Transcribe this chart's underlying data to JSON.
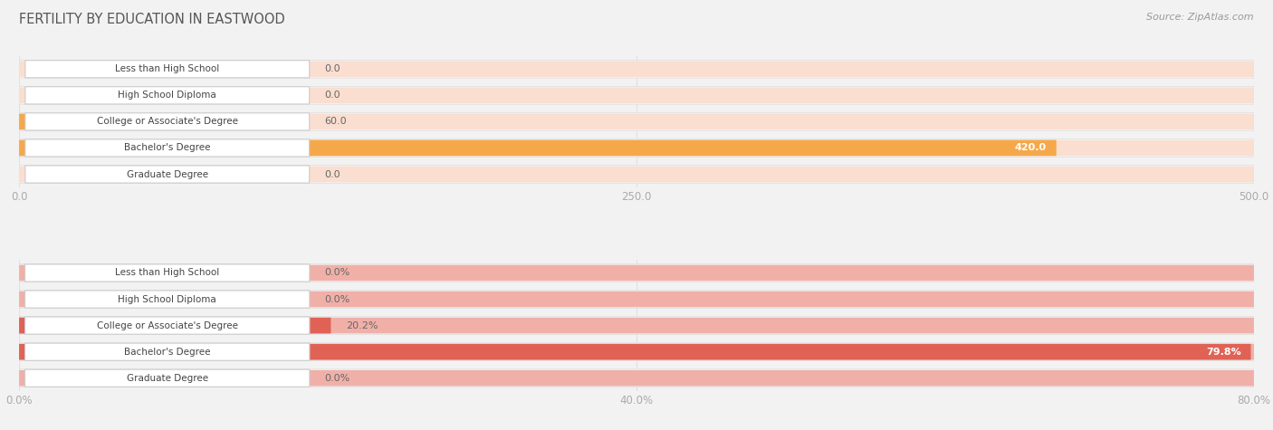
{
  "title": "FERTILITY BY EDUCATION IN EASTWOOD",
  "source": "Source: ZipAtlas.com",
  "chart1": {
    "categories": [
      "Less than High School",
      "High School Diploma",
      "College or Associate's Degree",
      "Bachelor's Degree",
      "Graduate Degree"
    ],
    "values": [
      0.0,
      0.0,
      60.0,
      420.0,
      0.0
    ],
    "xlim": [
      0,
      500
    ],
    "xticks": [
      0.0,
      250.0,
      500.0
    ],
    "bar_color_main": "#F5A84A",
    "bar_color_light": "#FADED0",
    "label_values": [
      "0.0",
      "0.0",
      "60.0",
      "420.0",
      "0.0"
    ],
    "max_idx": 3
  },
  "chart2": {
    "categories": [
      "Less than High School",
      "High School Diploma",
      "College or Associate's Degree",
      "Bachelor's Degree",
      "Graduate Degree"
    ],
    "values": [
      0.0,
      0.0,
      20.2,
      79.8,
      0.0
    ],
    "xlim": [
      0,
      80
    ],
    "xticks": [
      0.0,
      40.0,
      80.0
    ],
    "bar_color_main": "#E06255",
    "bar_color_light": "#F0B0A8",
    "label_values": [
      "0.0%",
      "0.0%",
      "20.2%",
      "79.8%",
      "0.0%"
    ],
    "max_idx": 3
  },
  "fig_bg": "#f2f2f2",
  "panel_bg": "#ffffff",
  "row_bg": "#f7f7f7",
  "label_box_bg": "#ffffff",
  "label_box_edge": "#cccccc",
  "title_color": "#555555",
  "source_color": "#999999",
  "tick_label_color": "#aaaaaa",
  "grid_color": "#e0e0e0",
  "value_label_color": "#666666",
  "value_label_inside_color": "#ffffff"
}
